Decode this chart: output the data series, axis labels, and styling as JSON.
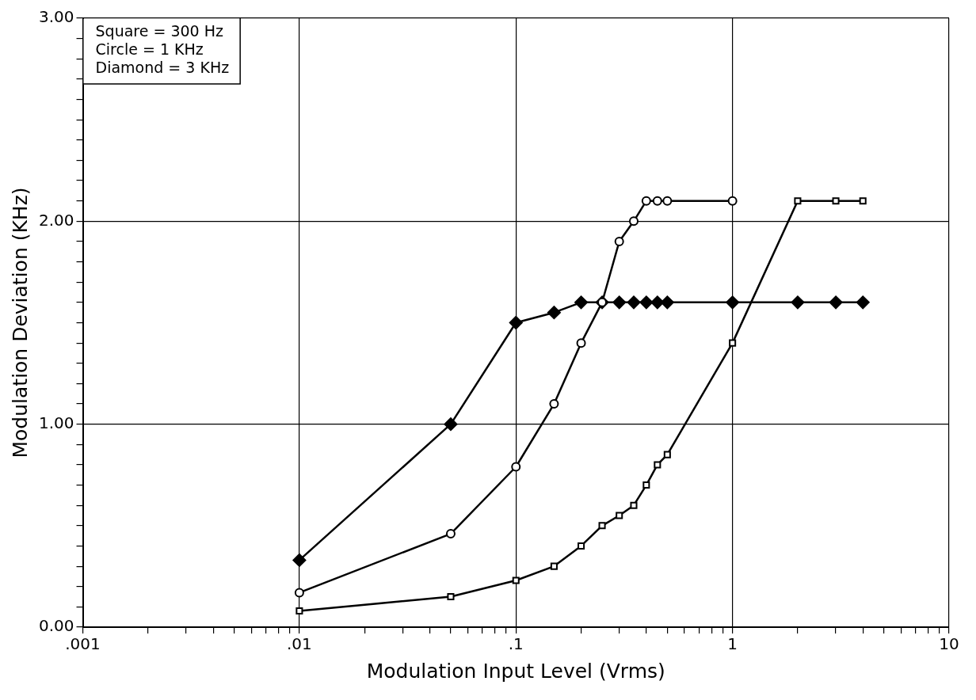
{
  "chart_data": {
    "type": "line",
    "xlabel": "Modulation Input Level (Vrms)",
    "ylabel": "Modulation Deviation (KHz)",
    "annotations": [
      "Square = 300 Hz",
      "Circle = 1 KHz",
      "Diamond = 3 KHz"
    ],
    "log": "x",
    "grid": true,
    "legend": false,
    "line_style": "solid",
    "xlim": [
      0.001,
      10
    ],
    "ylim": [
      0,
      3
    ],
    "xticks": [
      {
        "value": 0.001,
        "label": ".001"
      },
      {
        "value": 0.002,
        "label": null
      },
      {
        "value": 0.003,
        "label": null
      },
      {
        "value": 0.004,
        "label": null
      },
      {
        "value": 0.005,
        "label": null
      },
      {
        "value": 0.006,
        "label": null
      },
      {
        "value": 0.007,
        "label": null
      },
      {
        "value": 0.008,
        "label": null
      },
      {
        "value": 0.009,
        "label": null
      },
      {
        "value": 0.01,
        "label": ".01"
      },
      {
        "value": 0.02,
        "label": null
      },
      {
        "value": 0.03,
        "label": null
      },
      {
        "value": 0.04,
        "label": null
      },
      {
        "value": 0.05,
        "label": null
      },
      {
        "value": 0.06,
        "label": null
      },
      {
        "value": 0.07,
        "label": null
      },
      {
        "value": 0.08,
        "label": null
      },
      {
        "value": 0.09,
        "label": null
      },
      {
        "value": 0.1,
        "label": ".1"
      },
      {
        "value": 0.2,
        "label": null
      },
      {
        "value": 0.3,
        "label": null
      },
      {
        "value": 0.4,
        "label": null
      },
      {
        "value": 0.5,
        "label": null
      },
      {
        "value": 0.6,
        "label": null
      },
      {
        "value": 0.7,
        "label": null
      },
      {
        "value": 0.8,
        "label": null
      },
      {
        "value": 0.9,
        "label": null
      },
      1,
      {
        "value": 2,
        "label": null
      },
      {
        "value": 3,
        "label": null
      },
      {
        "value": 4,
        "label": null
      },
      {
        "value": 5,
        "label": null
      },
      {
        "value": 6,
        "label": null
      },
      {
        "value": 7,
        "label": null
      },
      {
        "value": 8,
        "label": null
      },
      {
        "value": 9,
        "label": null
      },
      10
    ],
    "yticks": [
      {
        "value": 0,
        "label": "0.00"
      },
      {
        "value": 0.1,
        "label": null
      },
      {
        "value": 0.2,
        "label": null
      },
      {
        "value": 0.3,
        "label": null
      },
      {
        "value": 0.4,
        "label": null
      },
      {
        "value": 0.5,
        "label": null
      },
      {
        "value": 0.6,
        "label": null
      },
      {
        "value": 0.7,
        "label": null
      },
      {
        "value": 0.8,
        "label": null
      },
      {
        "value": 0.9,
        "label": null
      },
      {
        "value": 1,
        "label": "1.00"
      },
      {
        "value": 1.1,
        "label": null
      },
      {
        "value": 1.2,
        "label": null
      },
      {
        "value": 1.3,
        "label": null
      },
      {
        "value": 1.4,
        "label": null
      },
      {
        "value": 1.5,
        "label": null
      },
      {
        "value": 1.6,
        "label": null
      },
      {
        "value": 1.7,
        "label": null
      },
      {
        "value": 1.8,
        "label": null
      },
      {
        "value": 1.9,
        "label": null
      },
      {
        "value": 2,
        "label": "2.00"
      },
      {
        "value": 2.1,
        "label": null
      },
      {
        "value": 2.2,
        "label": null
      },
      {
        "value": 2.3,
        "label": null
      },
      {
        "value": 2.4,
        "label": null
      },
      {
        "value": 2.5,
        "label": null
      },
      {
        "value": 2.6,
        "label": null
      },
      {
        "value": 2.7,
        "label": null
      },
      {
        "value": 2.8,
        "label": null
      },
      {
        "value": 2.9,
        "label": null
      },
      {
        "value": 3,
        "label": "3.00"
      }
    ],
    "series": [
      {
        "color": "#000000",
        "marker": "square",
        "x": [
          0.01,
          0.05,
          0.1,
          0.15,
          0.2,
          0.25,
          0.3,
          0.35,
          0.4,
          0.45,
          0.5,
          1,
          2,
          3,
          4
        ],
        "values": [
          0.08,
          0.15,
          0.23,
          0.3,
          0.4,
          0.5,
          0.55,
          0.6,
          0.7,
          0.8,
          0.85,
          1.4,
          2.1,
          2.1,
          2.1
        ]
      },
      {
        "color": "#000000",
        "marker": "circle",
        "x": [
          0.01,
          0.05,
          0.1,
          0.15,
          0.2,
          0.25,
          0.3,
          0.35,
          0.4,
          0.45,
          0.5,
          1
        ],
        "values": [
          0.17,
          0.46,
          0.79,
          1.1,
          1.4,
          1.6,
          1.9,
          2.0,
          2.1,
          2.1,
          2.1,
          2.1
        ]
      },
      {
        "color": "#000000",
        "marker": "diamond",
        "x": [
          0.01,
          0.05,
          0.1,
          0.15,
          0.2,
          0.25,
          0.3,
          0.35,
          0.4,
          0.45,
          0.5,
          1,
          2,
          3,
          4
        ],
        "values": [
          0.33,
          1.0,
          1.5,
          1.55,
          1.6,
          1.6,
          1.6,
          1.6,
          1.6,
          1.6,
          1.6,
          1.6,
          1.6,
          1.6,
          1.6
        ]
      }
    ]
  }
}
